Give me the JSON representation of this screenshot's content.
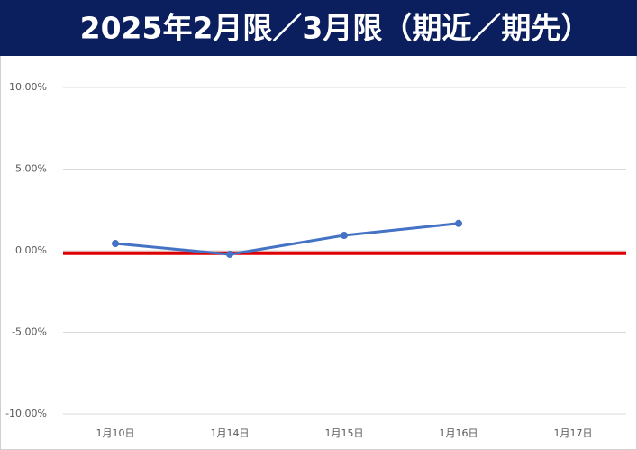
{
  "chart_data": {
    "type": "line",
    "title": "2025年2月限／3月限（期近／期先）",
    "categories": [
      "1月10日",
      "1月14日",
      "1月15日",
      "1月16日",
      "1月17日"
    ],
    "series": [
      {
        "color": "#4472c4",
        "values": [
          0.44,
          -0.22,
          0.94,
          1.67,
          null
        ]
      }
    ],
    "reference_line": {
      "value": -0.15,
      "color": "#e00000"
    },
    "ylim": [
      -10,
      10
    ],
    "yticks": [
      {
        "value": -10,
        "label": "-10.00%"
      },
      {
        "value": -5,
        "label": "-5.00%"
      },
      {
        "value": 0,
        "label": "0.00%"
      },
      {
        "value": 5,
        "label": "5.00%"
      },
      {
        "value": 10,
        "label": "10.00%"
      }
    ],
    "grid": true
  }
}
